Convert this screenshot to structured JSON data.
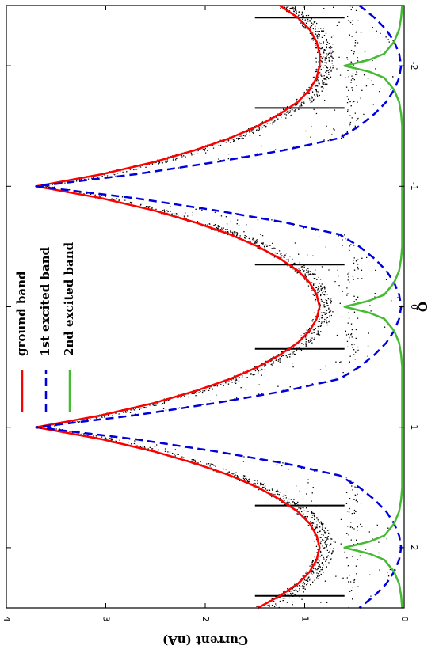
{
  "chart_data": {
    "type": "line",
    "title": "",
    "xlabel": "Q",
    "ylabel": "Current (nA)",
    "xlim": [
      -2.5,
      2.5
    ],
    "ylim": [
      0,
      4
    ],
    "x_ticks": [
      -2,
      -1,
      0,
      1,
      2
    ],
    "x_tick_labels": [
      "-2",
      "-1",
      "0",
      "1",
      "2"
    ],
    "y_ticks": [
      0,
      1,
      2,
      3,
      4
    ],
    "y_tick_labels": [
      "0",
      "1",
      "2",
      "3",
      "4"
    ],
    "grid": false,
    "legend_position": "top-right",
    "orientation": "rotated 90° clockwise (Q axis runs vertically, Current axis runs horizontally)",
    "series": [
      {
        "name": "ground band",
        "color": "#ff0000",
        "style": "solid",
        "x": [
          -2.5,
          -2.4,
          -2.3,
          -2.2,
          -2.1,
          -2.0,
          -1.9,
          -1.8,
          -1.7,
          -1.6,
          -1.5,
          -1.4,
          -1.3,
          -1.2,
          -1.1,
          -1.0,
          -0.9,
          -0.8,
          -0.7,
          -0.6,
          -0.5,
          -0.4,
          -0.3,
          -0.2,
          -0.1,
          0.0,
          0.1,
          0.2,
          0.3,
          0.4,
          0.5,
          0.6,
          0.7,
          0.8,
          0.9,
          1.0,
          1.1,
          1.2,
          1.3,
          1.4,
          1.5,
          1.6,
          1.7,
          1.8,
          1.9,
          2.0,
          2.1,
          2.2,
          2.3,
          2.4,
          2.5
        ],
        "y": [
          1.25,
          1.07,
          0.95,
          0.88,
          0.85,
          0.85,
          0.88,
          0.95,
          1.07,
          1.25,
          1.47,
          1.75,
          2.1,
          2.52,
          3.04,
          3.7,
          3.04,
          2.52,
          2.1,
          1.75,
          1.47,
          1.25,
          1.07,
          0.95,
          0.88,
          0.85,
          0.88,
          0.95,
          1.07,
          1.25,
          1.47,
          1.75,
          2.1,
          2.52,
          3.04,
          3.7,
          3.04,
          2.52,
          2.1,
          1.75,
          1.47,
          1.25,
          1.07,
          0.95,
          0.88,
          0.85,
          0.88,
          0.95,
          1.07,
          1.25,
          1.47
        ]
      },
      {
        "name": "1st excited band",
        "color": "#0000dd",
        "style": "dashed",
        "x": [
          -2.5,
          -2.4,
          -2.3,
          -2.2,
          -2.1,
          -2.0,
          -1.9,
          -1.8,
          -1.7,
          -1.6,
          -1.5,
          -1.4,
          -1.3,
          -1.2,
          -1.1,
          -1.0,
          -0.9,
          -0.8,
          -0.7,
          -0.6,
          -0.5,
          -0.4,
          -0.3,
          -0.2,
          -0.1,
          0.0,
          0.1,
          0.2,
          0.3,
          0.4,
          0.5,
          0.6,
          0.7,
          0.8,
          0.9,
          1.0,
          1.1,
          1.2,
          1.3,
          1.4,
          1.5,
          1.6,
          1.7,
          1.8,
          1.9,
          2.0,
          2.1,
          2.2,
          2.3,
          2.4,
          2.5
        ],
        "y": [
          0.45,
          0.3,
          0.18,
          0.1,
          0.05,
          0.03,
          0.05,
          0.1,
          0.18,
          0.3,
          0.45,
          0.65,
          1.2,
          1.9,
          2.7,
          3.7,
          2.7,
          1.9,
          1.2,
          0.65,
          0.45,
          0.3,
          0.18,
          0.1,
          0.05,
          0.03,
          0.05,
          0.1,
          0.18,
          0.3,
          0.45,
          0.65,
          1.2,
          1.9,
          2.7,
          3.7,
          2.7,
          1.9,
          1.2,
          0.65,
          0.45,
          0.3,
          0.18,
          0.1,
          0.05,
          0.03,
          0.05,
          0.1,
          0.18,
          0.3,
          0.45
        ]
      },
      {
        "name": "2nd excited band",
        "color": "#44bb33",
        "style": "solid",
        "x": [
          -2.5,
          -2.4,
          -2.3,
          -2.2,
          -2.1,
          -2.05,
          -2.02,
          -2.0,
          -1.98,
          -1.95,
          -1.9,
          -1.8,
          -1.7,
          -1.6,
          -1.5,
          -1.4,
          -1.3,
          -1.2,
          -1.1,
          -1.0,
          -0.9,
          -0.8,
          -0.7,
          -0.6,
          -0.5,
          -0.4,
          -0.3,
          -0.2,
          -0.1,
          -0.05,
          -0.02,
          0.0,
          0.02,
          0.05,
          0.1,
          0.2,
          0.3,
          0.4,
          0.5,
          0.6,
          0.7,
          0.8,
          0.9,
          1.0,
          1.1,
          1.2,
          1.3,
          1.4,
          1.5,
          1.6,
          1.7,
          1.8,
          1.9,
          1.95,
          1.98,
          2.0,
          2.02,
          2.05,
          2.1,
          2.2,
          2.3,
          2.4,
          2.5
        ],
        "y": [
          0.02,
          0.03,
          0.05,
          0.1,
          0.2,
          0.35,
          0.5,
          0.6,
          0.5,
          0.35,
          0.2,
          0.1,
          0.05,
          0.03,
          0.02,
          0.02,
          0.02,
          0.02,
          0.02,
          0.02,
          0.02,
          0.02,
          0.02,
          0.02,
          0.02,
          0.03,
          0.05,
          0.1,
          0.2,
          0.35,
          0.5,
          0.6,
          0.5,
          0.35,
          0.2,
          0.1,
          0.05,
          0.03,
          0.02,
          0.02,
          0.02,
          0.02,
          0.02,
          0.02,
          0.02,
          0.02,
          0.02,
          0.02,
          0.02,
          0.03,
          0.05,
          0.1,
          0.2,
          0.35,
          0.5,
          0.6,
          0.5,
          0.35,
          0.2,
          0.1,
          0.05,
          0.03,
          0.02
        ]
      }
    ],
    "markers": {
      "color": "#000000",
      "q": [
        -2.4,
        -1.65,
        -0.35,
        0.35,
        1.65,
        2.4
      ],
      "current_range": [
        0.6,
        1.5
      ]
    },
    "measured_points": {
      "color": "#000000",
      "description_visible": false
    }
  }
}
